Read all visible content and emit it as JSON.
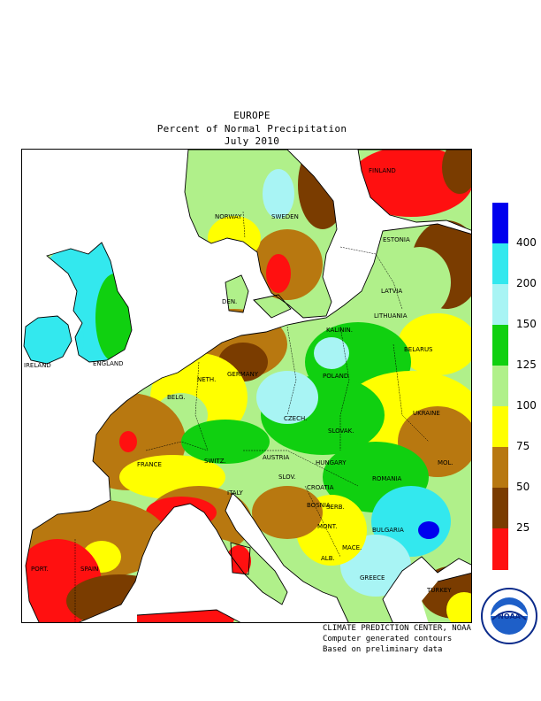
{
  "title": {
    "region": "EUROPE",
    "product": "Percent of Normal Precipitation",
    "period": "July 2010"
  },
  "countries": [
    "NORWAY",
    "SWEDEN",
    "FINLAND",
    "ESTONIA",
    "LATVIA",
    "LITHUANIA",
    "KALININ.",
    "DEN.",
    "IRELAND",
    "ENGLAND",
    "NETH.",
    "BELG.",
    "GERMANY",
    "POLAND",
    "BELARUS",
    "CZECH.",
    "SLOVAK.",
    "UKRAINE",
    "FRANCE",
    "SWITZ.",
    "AUSTRIA",
    "HUNGARY",
    "MOL.",
    "ROMANIA",
    "SLOV.",
    "CROATIA",
    "BOSNIA",
    "SERB.",
    "MONT.",
    "BULGARIA",
    "MACE.",
    "ALB.",
    "ITALY",
    "GREECE",
    "TURKEY",
    "PORT.",
    "SPAIN"
  ],
  "legend": {
    "ticks": [
      "400",
      "200",
      "150",
      "125",
      "100",
      "75",
      "50",
      "25"
    ],
    "colors": [
      "#0000ee",
      "#33e8ee",
      "#a8f4f4",
      "#10d010",
      "#b0f08a",
      "#ffff00",
      "#b87810",
      "#7a3c00",
      "#ff1010"
    ]
  },
  "palette": {
    "ocean": "#ffffff",
    "coast": "#000000"
  },
  "credits": [
    "CLIMATE PREDICTION CENTER, NOAA",
    "Computer generated contours",
    "Based on preliminary data"
  ],
  "logo": {
    "text": "NOAA",
    "ring_text": "NATIONAL OCEANIC AND ATMOSPHERIC ADMINISTRATION · U.S. DEPARTMENT OF COMMERCE"
  }
}
